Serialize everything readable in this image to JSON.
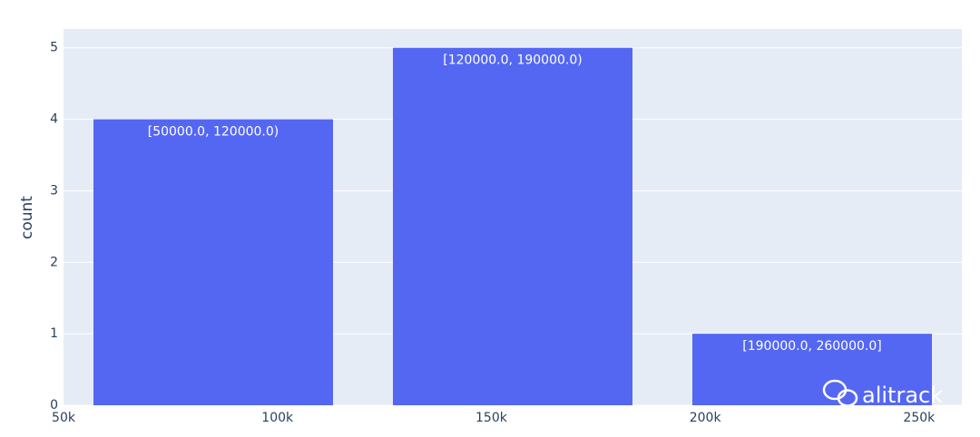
{
  "chart_data": {
    "type": "bar",
    "x": [
      85000,
      155000,
      225000
    ],
    "values": [
      4,
      5,
      1
    ],
    "labels": [
      "[50000.0, 120000.0)",
      "[120000.0, 190000.0)",
      "[190000.0, 260000.0]"
    ],
    "color": "#5467f3",
    "y_label": "count",
    "xlim": [
      50000,
      260000
    ],
    "xticks": [
      {
        "value": 50000,
        "label": "50k"
      },
      {
        "value": 100000,
        "label": "100k"
      },
      {
        "value": 150000,
        "label": "150k"
      },
      {
        "value": 200000,
        "label": "200k"
      },
      {
        "value": 250000,
        "label": "250k"
      }
    ],
    "ylim": [
      0,
      5.263
    ],
    "yticks": [
      0,
      1,
      2,
      3,
      4,
      5
    ],
    "grid": true,
    "watermark": "alitrack"
  }
}
